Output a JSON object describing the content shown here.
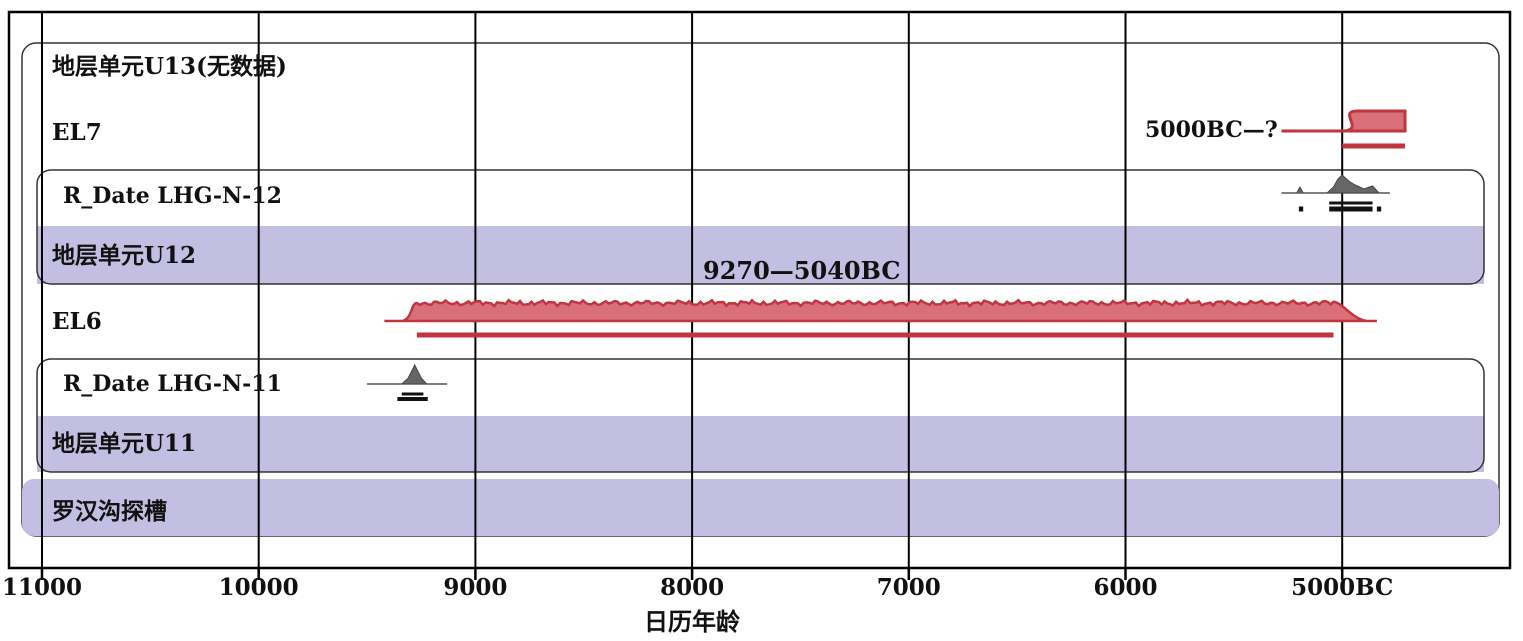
{
  "chart_data": {
    "type": "area",
    "xlabel": "日历年龄",
    "x_ticks": [
      "11000",
      "10000",
      "9000",
      "8000",
      "7000",
      "6000",
      "5000BC"
    ],
    "x_tick_values": [
      11000,
      10000,
      9000,
      8000,
      7000,
      6000,
      5000
    ],
    "xlim": [
      11160,
      4320
    ],
    "x_reversed": true,
    "grid": "vertical",
    "rows": [
      {
        "label": "地层单元U13(无数据)",
        "kind": "phase-label"
      },
      {
        "label": "EL7",
        "kind": "boundary",
        "annotation": "5000BC—?",
        "distribution": {
          "start": 4990,
          "plateau": 4930,
          "end": 4710
        },
        "range_68": [
          5000,
          4710
        ],
        "range_95": [
          5000,
          4710
        ]
      },
      {
        "label": "R_Date LHG-N-12",
        "kind": "date",
        "distribution_peak": 5000,
        "distribution_range": [
          5280,
          4780
        ],
        "range_68": [
          5060,
          4860
        ],
        "range_95": [
          [
            5200,
            5180
          ],
          [
            5060,
            4860
          ],
          [
            4840,
            4820
          ]
        ]
      },
      {
        "label": "地层单元U12",
        "kind": "phase"
      },
      {
        "label": "EL6",
        "kind": "interval",
        "annotation": "9270—5040BC",
        "distribution": {
          "start": 9420,
          "plateau": 9270,
          "end": 5040,
          "tail": 4840
        },
        "range_95": [
          9270,
          5040
        ]
      },
      {
        "label": "R_Date LHG-N-11",
        "kind": "date",
        "distribution_peak": 9280,
        "distribution_range": [
          9500,
          9130
        ],
        "range_68": [
          9340,
          9240
        ],
        "range_95": [
          9360,
          9220
        ]
      },
      {
        "label": "地层单元U11",
        "kind": "phase"
      },
      {
        "label": "罗汉沟探槽",
        "kind": "sequence"
      }
    ]
  },
  "colors": {
    "phase_fill": "#c3bfe3",
    "interval_stroke": "#c0363e",
    "interval_fill": "#d96f78",
    "date_fill": "#666666",
    "grid": "#000000"
  }
}
